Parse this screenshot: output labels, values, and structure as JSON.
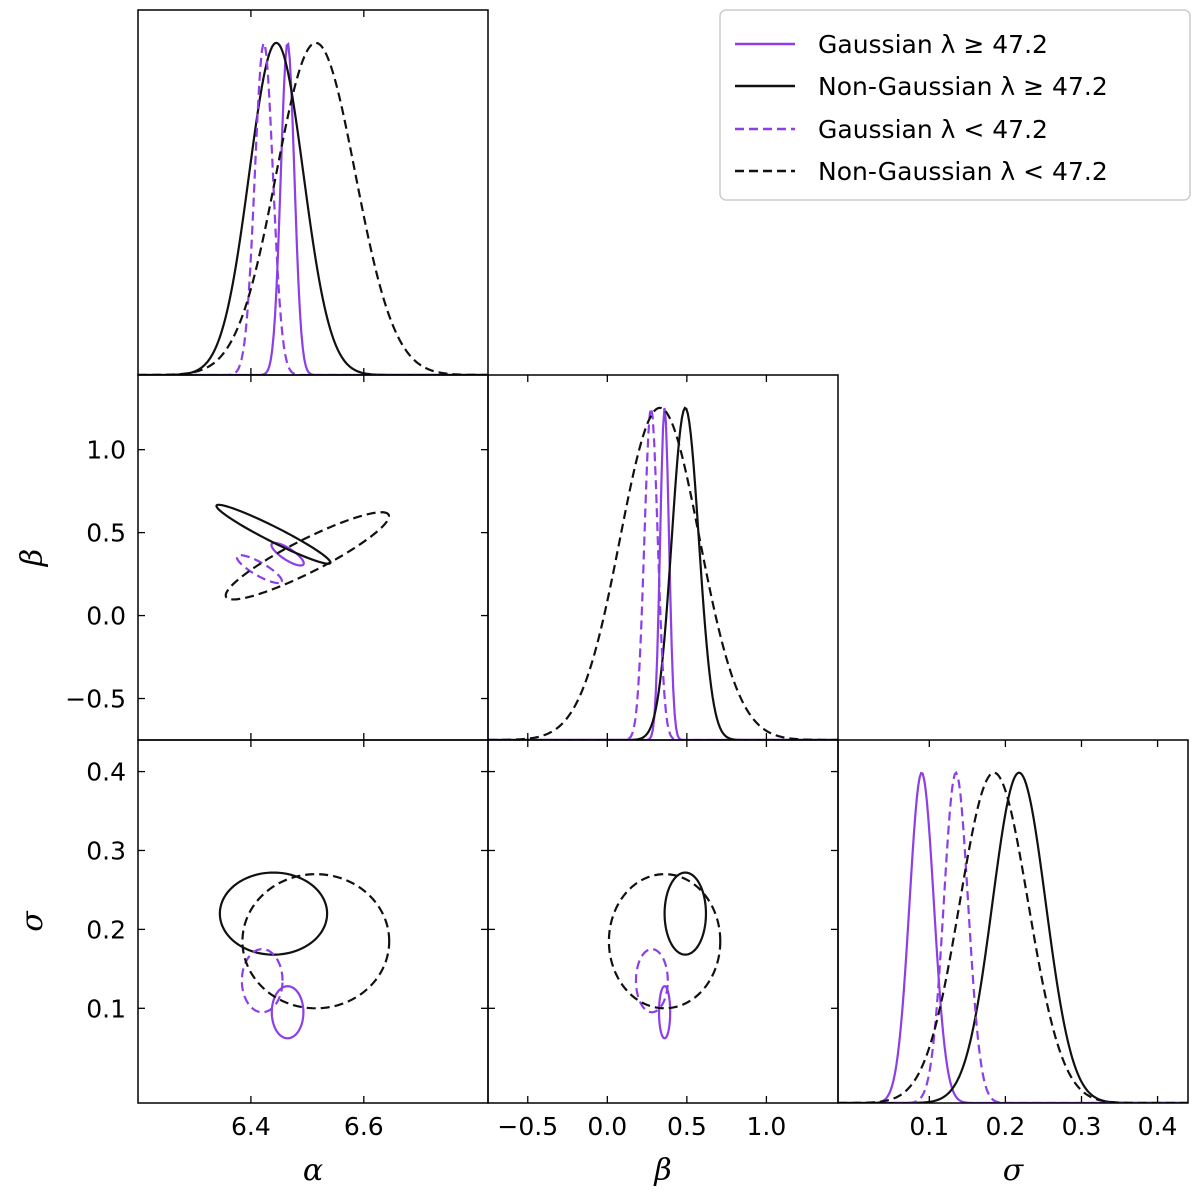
{
  "chart_data": {
    "type": "corner-plot",
    "colors": {
      "gaussian": "#8c3ee8",
      "non_gaussian": "#111111"
    },
    "parameters": [
      {
        "key": "alpha",
        "label": "α",
        "range": [
          6.2,
          6.82
        ],
        "ticks": [
          6.4,
          6.6
        ],
        "tick_labels": [
          "6.4",
          "6.6"
        ]
      },
      {
        "key": "beta",
        "label": "β",
        "range": [
          -0.75,
          1.45
        ],
        "ticks": [
          -0.5,
          0.0,
          0.5,
          1.0
        ],
        "tick_labels": [
          "−0.5",
          "0.0",
          "0.5",
          "1.0"
        ]
      },
      {
        "key": "sigma",
        "label": "σ",
        "range": [
          -0.02,
          0.44
        ],
        "ticks": [
          0.1,
          0.2,
          0.3,
          0.4
        ],
        "tick_labels": [
          "0.1",
          "0.2",
          "0.3",
          "0.4"
        ]
      }
    ],
    "legend": {
      "position": "top-right",
      "entries": [
        {
          "label": "Gaussian λ  ≥  47.2",
          "series": "gauss_hi"
        },
        {
          "label": "Non-Gaussian λ  ≥  47.2",
          "series": "ng_hi"
        },
        {
          "label": "Gaussian λ < 47.2",
          "series": "gauss_lo"
        },
        {
          "label": "Non-Gaussian λ < 47.2",
          "series": "ng_lo"
        }
      ]
    },
    "series": [
      {
        "key": "gauss_hi",
        "color": "gaussian",
        "dash": false,
        "marginals": {
          "alpha": {
            "mean": 6.465,
            "sigma": 0.012,
            "peak": 1.0
          },
          "beta": {
            "mean": 0.36,
            "sigma": 0.028,
            "peak": 1.0
          },
          "sigma": {
            "mean": 0.09,
            "sigma": 0.016,
            "peak": 1.0
          }
        },
        "contours": {
          "alpha_beta": {
            "cx": 6.465,
            "cy": 0.37,
            "rx": 0.033,
            "ry": 0.035,
            "rot": -0.55
          },
          "alpha_sigma": {
            "cx": 6.465,
            "cy": 0.095,
            "rx": 0.028,
            "ry": 0.033,
            "rot": 0.0
          },
          "beta_sigma": {
            "cx": 0.36,
            "cy": 0.095,
            "rx": 0.035,
            "ry": 0.033,
            "rot": 0.0
          }
        }
      },
      {
        "key": "ng_hi",
        "color": "non_gaussian",
        "dash": false,
        "marginals": {
          "alpha": {
            "mean": 6.445,
            "sigma": 0.048,
            "peak": 1.0
          },
          "beta": {
            "mean": 0.49,
            "sigma": 0.085,
            "peak": 1.0
          },
          "sigma": {
            "mean": 0.218,
            "sigma": 0.035,
            "peak": 1.0
          }
        },
        "contours": {
          "alpha_beta": {
            "cx": 6.44,
            "cy": 0.49,
            "rx": 0.112,
            "ry": 0.045,
            "rot": -0.45
          },
          "alpha_sigma": {
            "cx": 6.44,
            "cy": 0.22,
            "rx": 0.095,
            "ry": 0.052,
            "rot": 0.0
          },
          "beta_sigma": {
            "cx": 0.49,
            "cy": 0.22,
            "rx": 0.13,
            "ry": 0.052,
            "rot": 0.0
          }
        }
      },
      {
        "key": "gauss_lo",
        "color": "gaussian",
        "dash": true,
        "marginals": {
          "alpha": {
            "mean": 6.423,
            "sigma": 0.016,
            "peak": 1.0
          },
          "beta": {
            "mean": 0.275,
            "sigma": 0.042,
            "peak": 1.0
          },
          "sigma": {
            "mean": 0.135,
            "sigma": 0.016,
            "peak": 1.0
          }
        },
        "contours": {
          "alpha_beta": {
            "cx": 6.415,
            "cy": 0.28,
            "rx": 0.045,
            "ry": 0.04,
            "rot": -0.5
          },
          "alpha_sigma": {
            "cx": 6.42,
            "cy": 0.135,
            "rx": 0.036,
            "ry": 0.04,
            "rot": 0.0
          },
          "beta_sigma": {
            "cx": 0.28,
            "cy": 0.135,
            "rx": 0.1,
            "ry": 0.04,
            "rot": 0.0
          }
        }
      },
      {
        "key": "ng_lo",
        "color": "non_gaussian",
        "dash": true,
        "marginals": {
          "alpha": {
            "mean": 6.515,
            "sigma": 0.07,
            "peak": 1.0
          },
          "beta": {
            "mean": 0.33,
            "sigma": 0.25,
            "peak": 1.0
          },
          "sigma": {
            "mean": 0.185,
            "sigma": 0.045,
            "peak": 1.0
          }
        },
        "contours": {
          "alpha_beta": {
            "cx": 6.5,
            "cy": 0.36,
            "rx": 0.16,
            "ry": 0.1,
            "rot": 0.45
          },
          "alpha_sigma": {
            "cx": 6.515,
            "cy": 0.185,
            "rx": 0.13,
            "ry": 0.085,
            "rot": 0.0
          },
          "beta_sigma": {
            "cx": 0.36,
            "cy": 0.185,
            "rx": 0.35,
            "ry": 0.085,
            "rot": 0.0
          }
        }
      }
    ]
  }
}
